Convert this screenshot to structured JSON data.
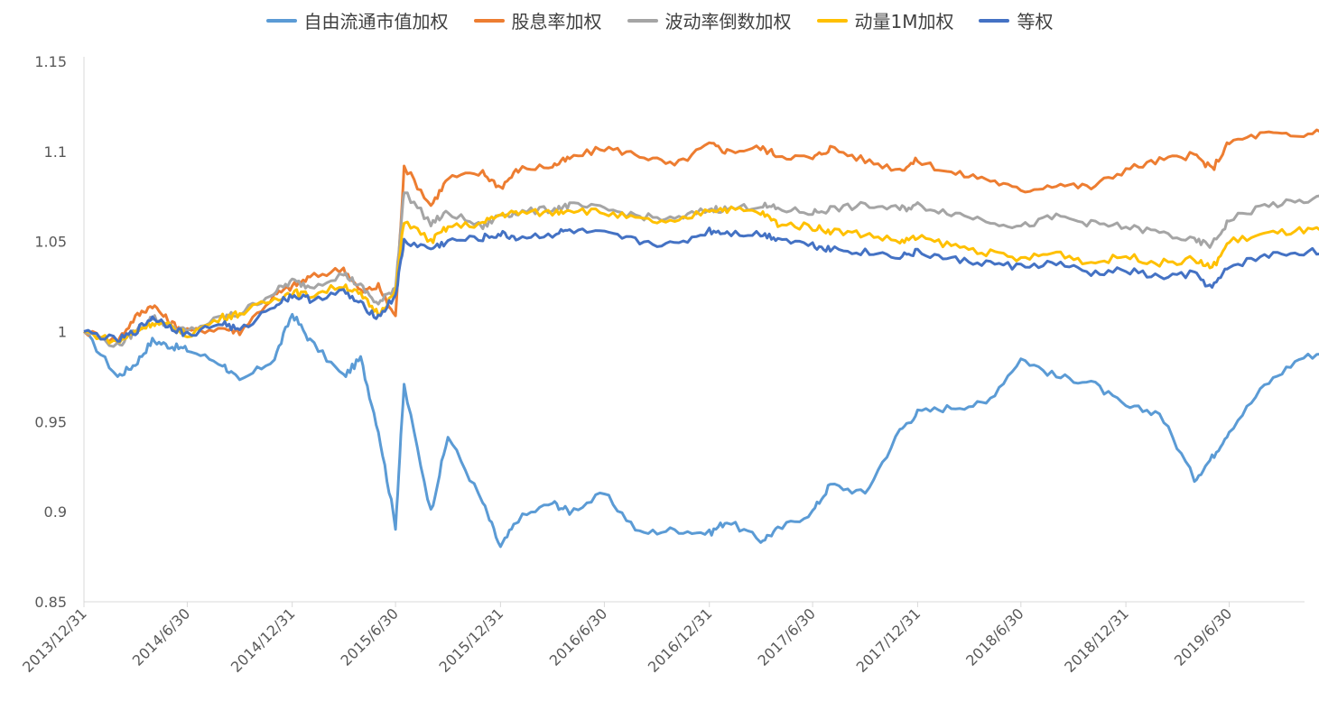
{
  "chart_data": {
    "type": "line",
    "title": "",
    "xlabel": "",
    "ylabel": "",
    "ylim": [
      0.85,
      1.15
    ],
    "y_ticks": [
      "0.85",
      "0.9",
      "0.95",
      "1",
      "1.05",
      "1.1",
      "1.15"
    ],
    "x_ticks": [
      "2013/12/31",
      "2014/6/30",
      "2014/12/31",
      "2015/6/30",
      "2015/12/31",
      "2016/6/30",
      "2016/12/31",
      "2017/6/30",
      "2017/12/31",
      "2018/6/30",
      "2018/12/31",
      "2019/6/30"
    ],
    "legend_position": "top-center",
    "grid": false,
    "x": [
      "2013/12/31",
      "2014/2/28",
      "2014/3/31",
      "2014/4/30",
      "2014/5/31",
      "2014/6/30",
      "2014/8/31",
      "2014/9/30",
      "2014/11/30",
      "2014/12/31",
      "2015/1/31",
      "2015/3/31",
      "2015/4/30",
      "2015/5/31",
      "2015/6/30",
      "2015/7/15",
      "2015/8/31",
      "2015/9/30",
      "2015/11/30",
      "2015/12/31",
      "2016/1/31",
      "2016/3/31",
      "2016/4/30",
      "2016/6/30",
      "2016/8/31",
      "2016/10/31",
      "2016/12/31",
      "2017/1/31",
      "2017/3/31",
      "2017/4/30",
      "2017/6/30",
      "2017/7/31",
      "2017/9/30",
      "2017/11/30",
      "2017/12/31",
      "2018/2/28",
      "2018/4/30",
      "2018/6/30",
      "2018/8/31",
      "2018/10/31",
      "2018/12/31",
      "2019/2/28",
      "2019/4/30",
      "2019/5/31",
      "2019/6/30",
      "2019/8/31",
      "2019/10/31",
      "2019/12/31"
    ],
    "series": [
      {
        "name": "自由流通市值加权",
        "color": "#5B9BD5",
        "values": [
          1.0,
          0.975,
          0.982,
          0.995,
          0.992,
          0.99,
          0.982,
          0.972,
          0.985,
          1.01,
          0.995,
          0.975,
          0.985,
          0.945,
          0.892,
          0.97,
          0.9,
          0.942,
          0.905,
          0.88,
          0.896,
          0.905,
          0.9,
          0.91,
          0.888,
          0.89,
          0.888,
          0.895,
          0.884,
          0.89,
          0.9,
          0.915,
          0.91,
          0.945,
          0.955,
          0.958,
          0.96,
          0.985,
          0.975,
          0.972,
          0.958,
          0.955,
          0.918,
          0.93,
          0.945,
          0.97,
          0.985,
          0.99
        ]
      },
      {
        "name": "股息率加权",
        "color": "#ED7D31",
        "values": [
          1.0,
          0.995,
          1.008,
          1.015,
          1.005,
          1.0,
          1.002,
          1.0,
          1.02,
          1.025,
          1.03,
          1.035,
          1.022,
          1.025,
          1.008,
          1.092,
          1.07,
          1.085,
          1.088,
          1.08,
          1.09,
          1.092,
          1.096,
          1.102,
          1.098,
          1.092,
          1.104,
          1.1,
          1.102,
          1.098,
          1.096,
          1.102,
          1.095,
          1.09,
          1.095,
          1.088,
          1.085,
          1.078,
          1.082,
          1.08,
          1.09,
          1.095,
          1.098,
          1.09,
          1.105,
          1.11,
          1.108,
          1.115
        ]
      },
      {
        "name": "波动率倒数加权",
        "color": "#A5A5A5",
        "values": [
          1.0,
          0.992,
          1.0,
          1.008,
          1.003,
          1.0,
          1.008,
          1.01,
          1.022,
          1.028,
          1.025,
          1.032,
          1.025,
          1.015,
          1.025,
          1.078,
          1.06,
          1.066,
          1.058,
          1.065,
          1.066,
          1.068,
          1.07,
          1.068,
          1.064,
          1.062,
          1.068,
          1.068,
          1.07,
          1.068,
          1.066,
          1.068,
          1.07,
          1.068,
          1.07,
          1.066,
          1.062,
          1.058,
          1.064,
          1.06,
          1.058,
          1.055,
          1.05,
          1.048,
          1.062,
          1.07,
          1.072,
          1.076
        ]
      },
      {
        "name": "动量1M加权",
        "color": "#FFC000",
        "values": [
          1.0,
          0.994,
          1.0,
          1.005,
          1.003,
          0.998,
          1.008,
          1.01,
          1.018,
          1.022,
          1.02,
          1.026,
          1.02,
          1.01,
          1.022,
          1.062,
          1.05,
          1.058,
          1.06,
          1.065,
          1.066,
          1.066,
          1.068,
          1.066,
          1.062,
          1.06,
          1.068,
          1.068,
          1.066,
          1.06,
          1.058,
          1.056,
          1.054,
          1.05,
          1.052,
          1.048,
          1.044,
          1.04,
          1.044,
          1.038,
          1.042,
          1.038,
          1.04,
          1.035,
          1.05,
          1.054,
          1.056,
          1.056
        ]
      },
      {
        "name": "等权",
        "color": "#4472C4",
        "values": [
          1.0,
          0.995,
          1.0,
          1.008,
          1.003,
          0.998,
          1.005,
          1.0,
          1.015,
          1.02,
          1.018,
          1.022,
          1.015,
          1.008,
          1.02,
          1.05,
          1.046,
          1.05,
          1.052,
          1.054,
          1.052,
          1.054,
          1.056,
          1.054,
          1.05,
          1.048,
          1.056,
          1.055,
          1.054,
          1.052,
          1.048,
          1.046,
          1.044,
          1.042,
          1.044,
          1.04,
          1.038,
          1.036,
          1.038,
          1.032,
          1.034,
          1.03,
          1.032,
          1.024,
          1.036,
          1.042,
          1.044,
          1.045
        ]
      }
    ]
  }
}
